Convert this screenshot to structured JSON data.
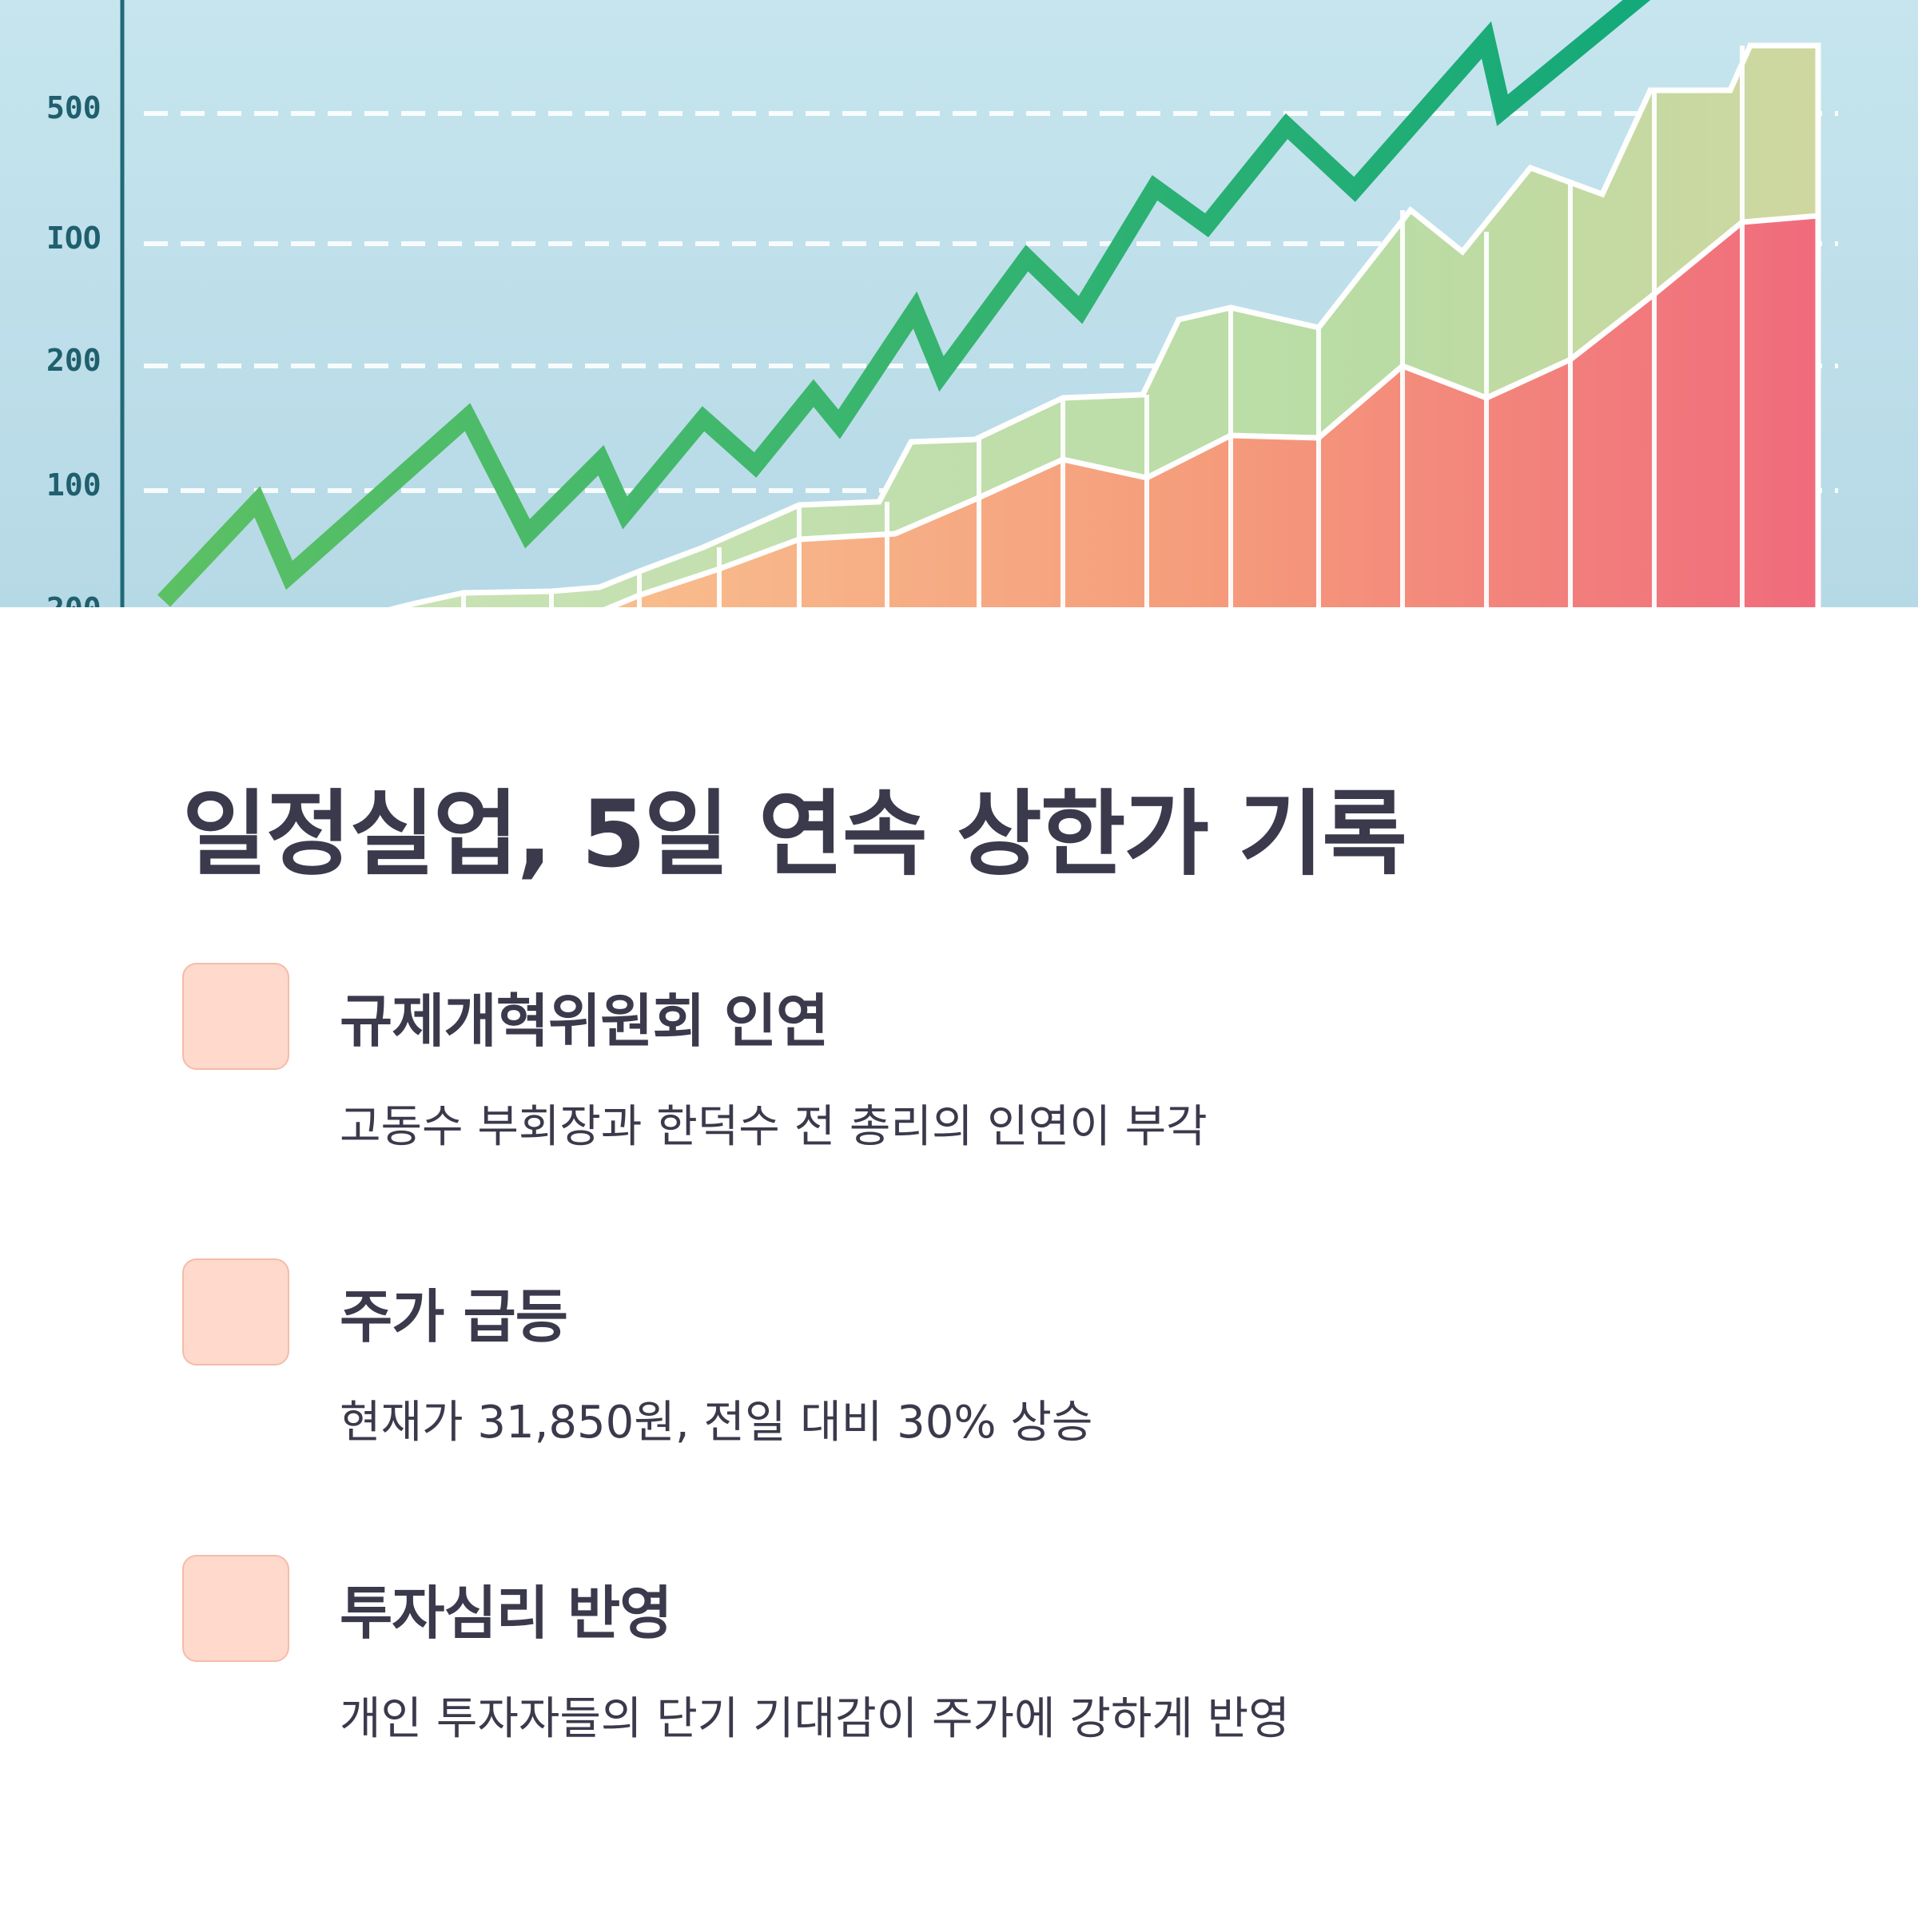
{
  "hero": {
    "description": "decorative rising stock chart illustration",
    "y_tick_labels": [
      "500",
      "IOO",
      "200",
      "100",
      "200"
    ],
    "colors": {
      "sky": "#c7e6ee",
      "line_green": "#16a974",
      "area_green": "#b9dca4",
      "area_orange": "#f5a37c",
      "area_red": "#f06f7c"
    }
  },
  "title": "일정실업, 5일 연속 상한가 기록",
  "features": [
    {
      "heading": "규제개혁위원회 인연",
      "desc": "고동수 부회장과 한덕수 전 총리의 인연이 부각"
    },
    {
      "heading": "주가 급등",
      "desc": "현재가 31,850원, 전일 대비 30% 상승"
    },
    {
      "heading": "투자심리 반영",
      "desc": "개인 투자자들의 단기 기대감이 주가에 강하게 반영"
    }
  ]
}
